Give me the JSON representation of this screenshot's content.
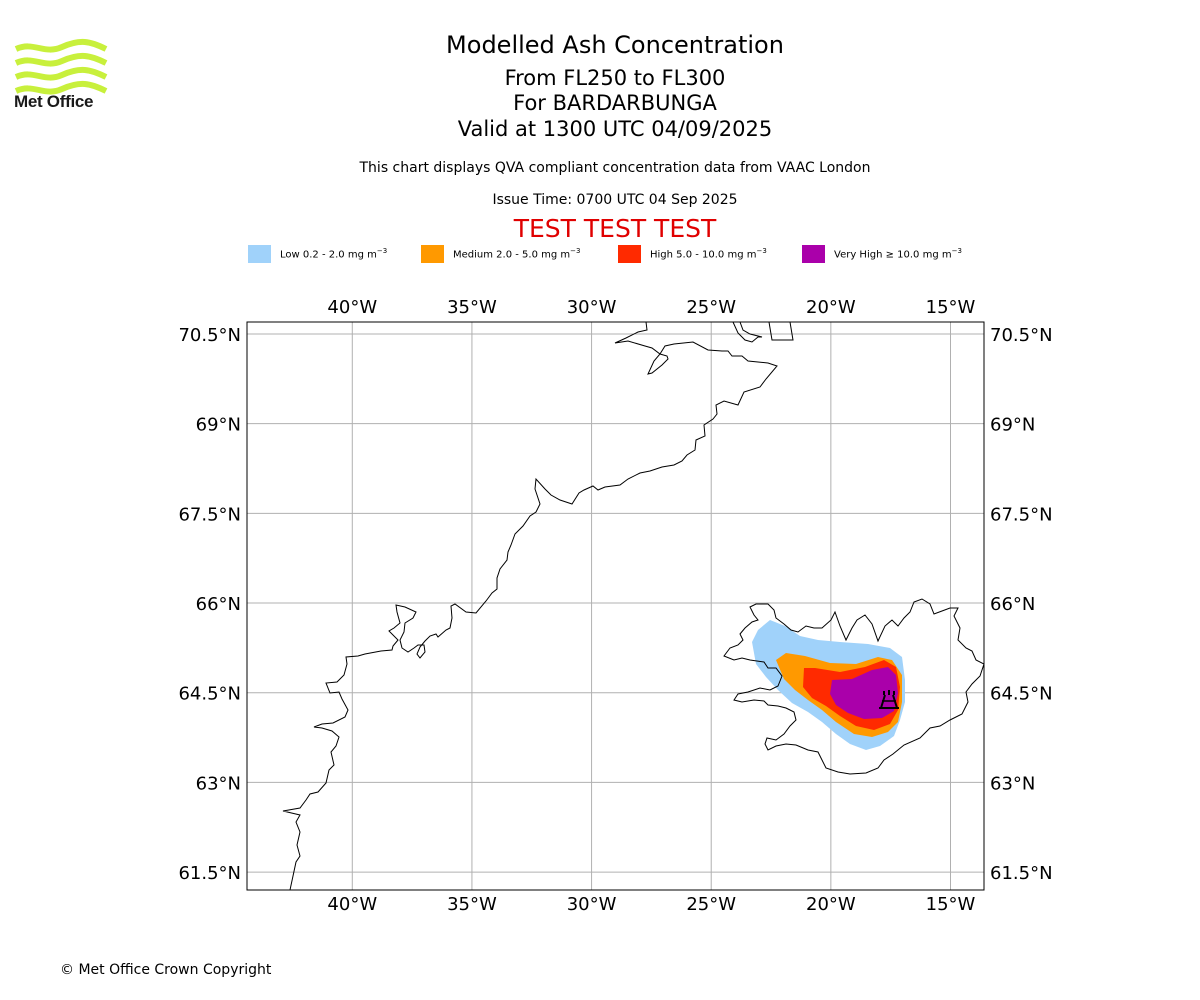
{
  "logo": {
    "name": "Met Office",
    "icon": "met-office-waves-icon",
    "color": "#c8f03c"
  },
  "titles": {
    "main": "Modelled Ash Concentration",
    "levels": "From FL250 to FL300",
    "volcano": "For BARDARBUNGA",
    "valid": "Valid at 1300 UTC 04/09/2025"
  },
  "subtitle": "This chart displays QVA compliant concentration data from VAAC London",
  "issue_time": "Issue Time: 0700 UTC 04 Sep 2025",
  "test_banner": {
    "text": "TEST TEST TEST",
    "color": "#e00000"
  },
  "legend": [
    {
      "label": "Low 0.2 - 2.0 mg m",
      "unit_exp": "−3",
      "color": "#a0d2fa"
    },
    {
      "label": "Medium 2.0 - 5.0 mg m",
      "unit_exp": "−3",
      "color": "#ff9900"
    },
    {
      "label": "High 5.0 - 10.0 mg m",
      "unit_exp": "−3",
      "color": "#ff2a00"
    },
    {
      "label": "Very High  ≥  10.0 mg m",
      "unit_exp": "−3",
      "color": "#aa00aa"
    }
  ],
  "map": {
    "lon_range": [
      -44.4,
      -13.6
    ],
    "lat_range": [
      61.2,
      70.7
    ],
    "lon_ticks": [
      {
        "value": -40,
        "label": "40°W"
      },
      {
        "value": -35,
        "label": "35°W"
      },
      {
        "value": -30,
        "label": "30°W"
      },
      {
        "value": -25,
        "label": "25°W"
      },
      {
        "value": -20,
        "label": "20°W"
      },
      {
        "value": -15,
        "label": "15°W"
      }
    ],
    "lat_ticks": [
      {
        "value": 70.5,
        "label": "70.5°N"
      },
      {
        "value": 69,
        "label": "69°N"
      },
      {
        "value": 67.5,
        "label": "67.5°N"
      },
      {
        "value": 66,
        "label": "66°N"
      },
      {
        "value": 64.5,
        "label": "64.5°N"
      },
      {
        "value": 63,
        "label": "63°N"
      },
      {
        "value": 61.5,
        "label": "61.5°N"
      }
    ],
    "gridlines": true,
    "volcano_symbol": "volcano-icon",
    "volcano_position": {
      "lon": -17.5,
      "lat": 64.7
    }
  },
  "copyright": "© Met Office Crown Copyright"
}
